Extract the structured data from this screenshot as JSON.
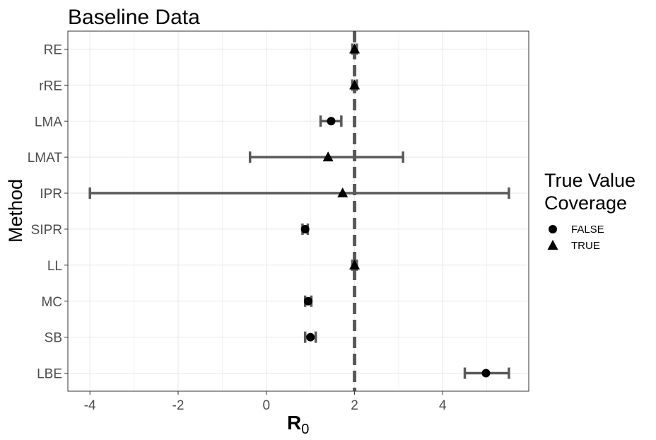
{
  "chart_data": {
    "type": "scatter",
    "title": "Baseline Data",
    "xlabel_main": "R",
    "xlabel_sub": "0",
    "ylabel": "Method",
    "xlim": [
      -4.5,
      5.95
    ],
    "xticks": [
      -4,
      -2,
      0,
      2,
      4
    ],
    "xtick_labels": [
      "-4",
      "-2",
      "0",
      "2",
      "4"
    ],
    "reference_line": 2,
    "grid": true,
    "categories": [
      "RE",
      "rRE",
      "LMA",
      "LMAT",
      "IPR",
      "SIPR",
      "LL",
      "MC",
      "SB",
      "LBE"
    ],
    "points": [
      {
        "method": "RE",
        "estimate": 2.0,
        "lower": 1.95,
        "upper": 2.05,
        "coverage": "TRUE"
      },
      {
        "method": "rRE",
        "estimate": 2.0,
        "lower": 1.95,
        "upper": 2.05,
        "coverage": "TRUE"
      },
      {
        "method": "LMA",
        "estimate": 1.47,
        "lower": 1.23,
        "upper": 1.7,
        "coverage": "FALSE"
      },
      {
        "method": "LMAT",
        "estimate": 1.4,
        "lower": -0.37,
        "upper": 3.1,
        "coverage": "TRUE"
      },
      {
        "method": "IPR",
        "estimate": 1.73,
        "lower": -4.0,
        "upper": 5.5,
        "coverage": "TRUE"
      },
      {
        "method": "SIPR",
        "estimate": 0.88,
        "lower": 0.82,
        "upper": 0.94,
        "coverage": "FALSE"
      },
      {
        "method": "LL",
        "estimate": 2.0,
        "lower": 1.95,
        "upper": 2.05,
        "coverage": "TRUE"
      },
      {
        "method": "MC",
        "estimate": 0.95,
        "lower": 0.88,
        "upper": 1.02,
        "coverage": "FALSE"
      },
      {
        "method": "SB",
        "estimate": 1.0,
        "lower": 0.88,
        "upper": 1.12,
        "coverage": "FALSE"
      },
      {
        "method": "LBE",
        "estimate": 4.98,
        "lower": 4.5,
        "upper": 5.5,
        "coverage": "FALSE"
      }
    ],
    "legend": {
      "title_line1": "True Value",
      "title_line2": "Coverage",
      "placement": "right",
      "entries": [
        {
          "label": "FALSE",
          "shape": "circle"
        },
        {
          "label": "TRUE",
          "shape": "triangle"
        }
      ]
    },
    "colors": {
      "points": "#000000",
      "errorbars": "#595959",
      "refline": "#595959",
      "grid": "#ebebeb",
      "panel_border": "#333333"
    }
  }
}
